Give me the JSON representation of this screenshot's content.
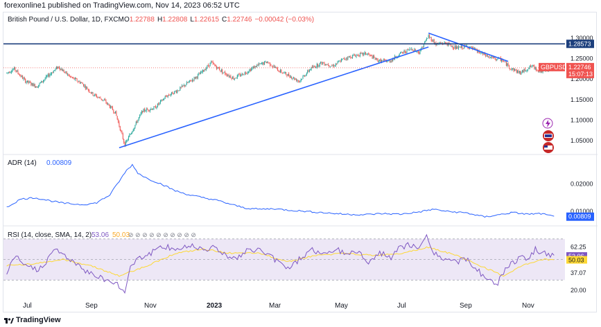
{
  "header": "forexonline1 published on TradingView.com, Nov 14, 2023 06:52 UTC",
  "footer": "TradingView",
  "colors": {
    "up": "#26a69a",
    "down": "#ef5350",
    "trendline": "#2962ff",
    "hline": "#1c3f7d",
    "adr": "#2962ff",
    "rsi": "#7e57c2",
    "rsi_sma": "#fdd835",
    "rsi_band": "#ede7f6",
    "price_tag": "#f05350",
    "level_tag": "#1c3f7d"
  },
  "chart_data": [
    {
      "type": "candlestick",
      "title": "British Pound / U.S. Dollar, 1D, FXCM",
      "ohlc_label": {
        "o": "O",
        "o_val": "1.22788",
        "h": "H",
        "h_val": "1.22808",
        "l": "L",
        "l_val": "1.22615",
        "c": "C",
        "c_val": "1.22746",
        "chg": "−0.00042 (−0.03%)"
      },
      "symbol": "GBPUSD",
      "last_price": "1.22746",
      "countdown": "15:07:13",
      "horizontal_level": {
        "value": 1.28573,
        "label": "1.28573"
      },
      "y_ticks": [
        "1.30000",
        "1.25000",
        "1.20000",
        "1.15000",
        "1.10000",
        "1.05000"
      ],
      "y_tick_values": [
        1.3,
        1.25,
        1.2,
        1.15,
        1.1,
        1.05
      ],
      "ylim": [
        1.025,
        1.325
      ],
      "x_ticks": [
        "Jul",
        "Sep",
        "Nov",
        "2023",
        "Mar",
        "May",
        "Jul",
        "Sep",
        "Nov"
      ],
      "keypoints": [
        [
          0,
          1.215
        ],
        [
          8,
          1.225
        ],
        [
          20,
          1.195
        ],
        [
          32,
          1.182
        ],
        [
          45,
          1.21
        ],
        [
          55,
          1.23
        ],
        [
          68,
          1.205
        ],
        [
          80,
          1.19
        ],
        [
          92,
          1.163
        ],
        [
          104,
          1.148
        ],
        [
          116,
          1.118
        ],
        [
          126,
          1.04
        ],
        [
          135,
          1.08
        ],
        [
          145,
          1.123
        ],
        [
          158,
          1.13
        ],
        [
          170,
          1.158
        ],
        [
          182,
          1.172
        ],
        [
          194,
          1.192
        ],
        [
          206,
          1.212
        ],
        [
          218,
          1.24
        ],
        [
          230,
          1.218
        ],
        [
          242,
          1.202
        ],
        [
          254,
          1.215
        ],
        [
          266,
          1.232
        ],
        [
          278,
          1.242
        ],
        [
          290,
          1.221
        ],
        [
          300,
          1.21
        ],
        [
          312,
          1.195
        ],
        [
          324,
          1.225
        ],
        [
          336,
          1.24
        ],
        [
          348,
          1.232
        ],
        [
          360,
          1.25
        ],
        [
          372,
          1.258
        ],
        [
          384,
          1.262
        ],
        [
          396,
          1.245
        ],
        [
          408,
          1.243
        ],
        [
          420,
          1.262
        ],
        [
          432,
          1.274
        ],
        [
          440,
          1.265
        ],
        [
          450,
          1.305
        ],
        [
          458,
          1.285
        ],
        [
          468,
          1.288
        ],
        [
          480,
          1.275
        ],
        [
          492,
          1.28
        ],
        [
          504,
          1.265
        ],
        [
          516,
          1.252
        ],
        [
          528,
          1.247
        ],
        [
          538,
          1.226
        ],
        [
          548,
          1.215
        ],
        [
          560,
          1.232
        ],
        [
          570,
          1.218
        ],
        [
          578,
          1.222
        ],
        [
          584,
          1.227
        ]
      ],
      "n_bars": 585,
      "trendlines": [
        {
          "from": [
            120,
            1.033
          ],
          "to": [
            450,
            1.278
          ]
        },
        {
          "from": [
            450,
            1.312
          ],
          "to": [
            535,
            1.243
          ]
        }
      ]
    },
    {
      "type": "line",
      "title": "ADR (14)",
      "value": "0.00809",
      "y_ticks": [
        "0.02000",
        "0.01000"
      ],
      "y_tick_values": [
        0.02,
        0.01
      ],
      "ylim": [
        0.0055,
        0.03
      ],
      "keypoints": [
        [
          0,
          0.0115
        ],
        [
          15,
          0.0145
        ],
        [
          30,
          0.015
        ],
        [
          45,
          0.014
        ],
        [
          60,
          0.013
        ],
        [
          80,
          0.0125
        ],
        [
          95,
          0.013
        ],
        [
          110,
          0.016
        ],
        [
          120,
          0.021
        ],
        [
          128,
          0.025
        ],
        [
          134,
          0.027
        ],
        [
          140,
          0.024
        ],
        [
          150,
          0.022
        ],
        [
          165,
          0.02
        ],
        [
          180,
          0.0175
        ],
        [
          195,
          0.016
        ],
        [
          210,
          0.015
        ],
        [
          225,
          0.014
        ],
        [
          240,
          0.0125
        ],
        [
          255,
          0.0112
        ],
        [
          270,
          0.0108
        ],
        [
          285,
          0.011
        ],
        [
          300,
          0.0105
        ],
        [
          320,
          0.01
        ],
        [
          340,
          0.0095
        ],
        [
          360,
          0.009
        ],
        [
          380,
          0.0088
        ],
        [
          400,
          0.0092
        ],
        [
          420,
          0.009
        ],
        [
          440,
          0.0098
        ],
        [
          455,
          0.0108
        ],
        [
          470,
          0.01
        ],
        [
          490,
          0.0095
        ],
        [
          510,
          0.008
        ],
        [
          525,
          0.0088
        ],
        [
          540,
          0.0096
        ],
        [
          555,
          0.009
        ],
        [
          570,
          0.0092
        ],
        [
          584,
          0.0081
        ]
      ]
    },
    {
      "type": "line",
      "title": "RSI (14, close, SMA, 14, 2)",
      "rsi_value": "53.06",
      "sma_value": "50.03",
      "y_ticks": [
        "62.25",
        "37.07",
        "20.00"
      ],
      "y_tick_values": [
        62.25,
        37.07,
        20.0
      ],
      "band": [
        30,
        70
      ],
      "ylim": [
        14,
        76
      ],
      "rsi_keypoints": [
        [
          0,
          38
        ],
        [
          10,
          52
        ],
        [
          20,
          44
        ],
        [
          32,
          40
        ],
        [
          42,
          48
        ],
        [
          52,
          60
        ],
        [
          62,
          54
        ],
        [
          72,
          46
        ],
        [
          82,
          40
        ],
        [
          92,
          36
        ],
        [
          102,
          32
        ],
        [
          112,
          28
        ],
        [
          120,
          24
        ],
        [
          126,
          18
        ],
        [
          132,
          44
        ],
        [
          140,
          52
        ],
        [
          150,
          54
        ],
        [
          160,
          60
        ],
        [
          170,
          62
        ],
        [
          180,
          60
        ],
        [
          190,
          62
        ],
        [
          200,
          64
        ],
        [
          210,
          60
        ],
        [
          220,
          62
        ],
        [
          232,
          56
        ],
        [
          244,
          50
        ],
        [
          256,
          58
        ],
        [
          268,
          60
        ],
        [
          280,
          54
        ],
        [
          292,
          46
        ],
        [
          302,
          42
        ],
        [
          314,
          52
        ],
        [
          326,
          60
        ],
        [
          338,
          54
        ],
        [
          350,
          60
        ],
        [
          362,
          56
        ],
        [
          374,
          58
        ],
        [
          386,
          48
        ],
        [
          398,
          56
        ],
        [
          410,
          52
        ],
        [
          420,
          62
        ],
        [
          430,
          64
        ],
        [
          440,
          60
        ],
        [
          448,
          72
        ],
        [
          455,
          58
        ],
        [
          465,
          50
        ],
        [
          478,
          48
        ],
        [
          490,
          50
        ],
        [
          502,
          40
        ],
        [
          514,
          30
        ],
        [
          522,
          24
        ],
        [
          530,
          38
        ],
        [
          538,
          46
        ],
        [
          548,
          52
        ],
        [
          556,
          48
        ],
        [
          564,
          60
        ],
        [
          572,
          56
        ],
        [
          584,
          53
        ]
      ],
      "sma_keypoints": [
        [
          0,
          44
        ],
        [
          30,
          46
        ],
        [
          60,
          50
        ],
        [
          90,
          44
        ],
        [
          120,
          34
        ],
        [
          150,
          44
        ],
        [
          180,
          56
        ],
        [
          210,
          60
        ],
        [
          240,
          56
        ],
        [
          270,
          56
        ],
        [
          300,
          48
        ],
        [
          330,
          54
        ],
        [
          360,
          56
        ],
        [
          390,
          54
        ],
        [
          420,
          56
        ],
        [
          450,
          62
        ],
        [
          480,
          54
        ],
        [
          510,
          42
        ],
        [
          530,
          34
        ],
        [
          550,
          44
        ],
        [
          570,
          50
        ],
        [
          584,
          50
        ]
      ],
      "dots": "⊘ ⊘ ⊘ ⊘ ⊘ ⊘ ⊘ ⊘ ⊘ ⊘"
    }
  ]
}
